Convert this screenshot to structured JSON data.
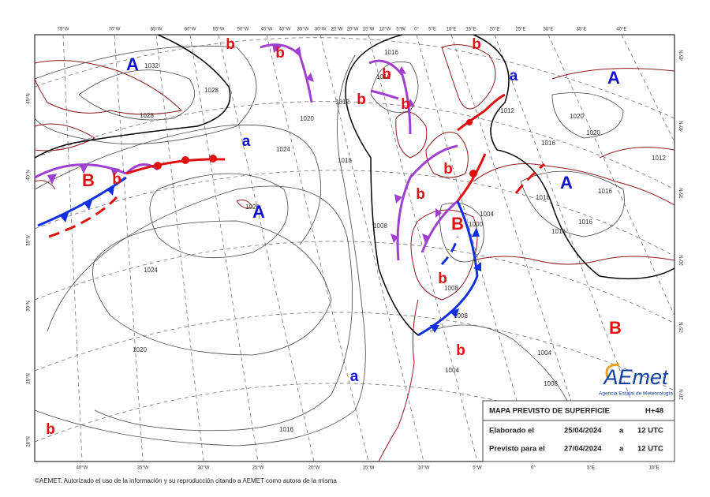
{
  "map": {
    "longitude_labels_top": [
      "75°W",
      "70°W",
      "65°W",
      "60°W",
      "55°W",
      "50°W",
      "45°W",
      "40°W",
      "35°W",
      "30°W",
      "25°W",
      "20°W",
      "15°W",
      "10°W",
      "5°W",
      "0°",
      "5°E",
      "10°E",
      "15°E",
      "20°E",
      "25°E",
      "30°E",
      "35°E",
      "40°E"
    ],
    "longitude_labels_bottom": [
      "40°W",
      "35°W",
      "30°W",
      "25°W",
      "20°W",
      "15°W",
      "10°W",
      "5°W",
      "0°",
      "5°E",
      "10°E"
    ],
    "latitude_labels_left": [
      "45°N",
      "40°N",
      "35°N",
      "30°N",
      "25°N",
      "20°N"
    ],
    "latitude_labels_right": [
      "45°N",
      "40°N",
      "35°N",
      "30°N",
      "25°N",
      "20°N"
    ],
    "isobar_labels": [
      1032,
      1028,
      1028,
      1024,
      1020,
      1016,
      1012,
      1016,
      1016,
      1024,
      1020,
      1016,
      1008,
      1004,
      1004,
      1008,
      1008,
      1016,
      1016,
      1016,
      1012,
      1020,
      1020,
      1016,
      1012,
      1016,
      1008,
      1000,
      1004,
      1020
    ],
    "pressure_centers": [
      {
        "label": "A",
        "color": "#1010d0"
      },
      {
        "label": "b",
        "color": "#e01010"
      },
      {
        "label": "b",
        "color": "#e01010"
      },
      {
        "label": "b",
        "color": "#e01010"
      },
      {
        "label": "b",
        "color": "#e01010"
      },
      {
        "label": "b",
        "color": "#e01010"
      },
      {
        "label": "b",
        "color": "#e01010"
      },
      {
        "label": "a",
        "color": "#1010d0"
      },
      {
        "label": "A",
        "color": "#1010d0"
      },
      {
        "label": "a",
        "color": "#1010d0"
      },
      {
        "label": "B",
        "color": "#e01010"
      },
      {
        "label": "b",
        "color": "#e01010"
      },
      {
        "label": "A",
        "color": "#1010d0"
      },
      {
        "label": "b",
        "color": "#e01010"
      },
      {
        "label": "b",
        "color": "#e01010"
      },
      {
        "label": "A",
        "color": "#1010d0"
      },
      {
        "label": "B",
        "color": "#e01010"
      },
      {
        "label": "b",
        "color": "#e01010"
      },
      {
        "label": "B",
        "color": "#e01010"
      },
      {
        "label": "b",
        "color": "#e01010"
      },
      {
        "label": "a",
        "color": "#1010d0"
      },
      {
        "label": "b",
        "color": "#e01010"
      }
    ],
    "info_box": {
      "title": "MAPA PREVISTO DE SUPERFICIE",
      "lead_time": "H+48",
      "rows": [
        [
          "Elaborado el",
          "25/04/2024",
          "a",
          "12 UTC"
        ],
        [
          "Previsto para el",
          "27/04/2024",
          "a",
          "12 UTC"
        ]
      ]
    },
    "logo": {
      "name": "AEmet",
      "subtitle": "Agencia Estatal de Meteorología"
    },
    "footer": "©AEMET. Autorizado el uso de la información y su reproducción citando a AEMET como autora de la misma"
  }
}
